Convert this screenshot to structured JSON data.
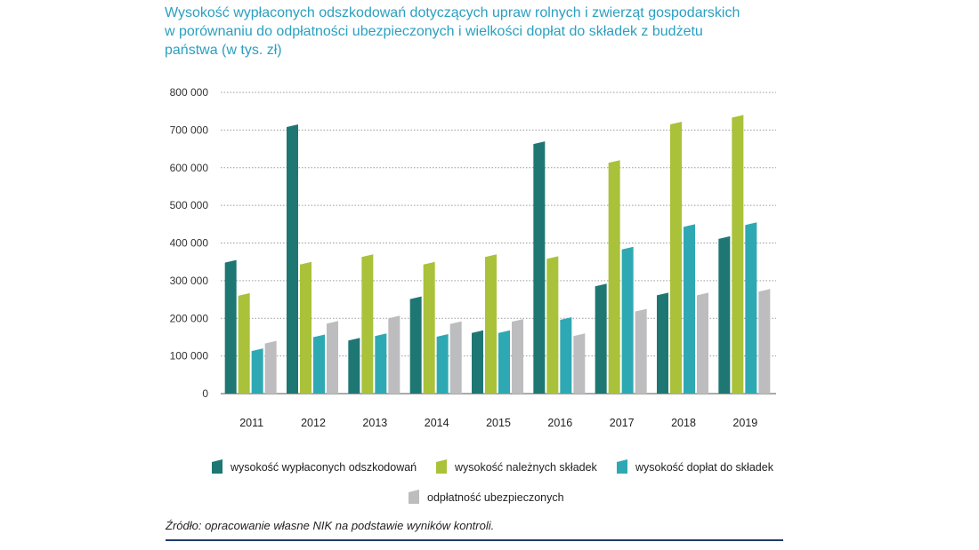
{
  "title": {
    "line1": "Wysokość wypłaconych odszkodowań dotyczących upraw rolnych i zwierząt gospodarskich",
    "line2": "w porównaniu do odpłatności ubezpieczonych i wielkości dopłat do składek z budżetu",
    "line3": "państwa (w tys. zł)"
  },
  "source": "Źródło: opracowanie własne NIK na podstawie wyników kontroli.",
  "chart_data": {
    "type": "bar",
    "title": "Wysokość wypłaconych odszkodowań dotyczących upraw rolnych i zwierząt gospodarskich w porównaniu do odpłatności ubezpieczonych i wielkości dopłat do składek z budżetu państwa (w tys. zł)",
    "categories": [
      "2011",
      "2012",
      "2013",
      "2014",
      "2015",
      "2016",
      "2017",
      "2018",
      "2019"
    ],
    "ylim": [
      0,
      800000
    ],
    "yticks": [
      0,
      100000,
      200000,
      300000,
      400000,
      500000,
      600000,
      700000,
      800000
    ],
    "ytick_labels": [
      "0",
      "100 000",
      "200 000",
      "300 000",
      "400 000",
      "500 000",
      "600 000",
      "700 000",
      "800 000"
    ],
    "grid": true,
    "legend_position": "bottom",
    "series": [
      {
        "name": "wysokość wypłaconych odszkodowań",
        "color": "#1e7773",
        "values": [
          355000,
          715000,
          148000,
          258000,
          168000,
          670000,
          292000,
          268000,
          418000
        ]
      },
      {
        "name": "wysokość należnych składek",
        "color": "#a9c23a",
        "values": [
          267000,
          350000,
          370000,
          350000,
          370000,
          365000,
          620000,
          722000,
          740000
        ]
      },
      {
        "name": "wysokość dopłat do składek",
        "color": "#2ea9b3",
        "values": [
          120000,
          157000,
          160000,
          158000,
          168000,
          203000,
          390000,
          450000,
          455000
        ]
      },
      {
        "name": "odpłatność ubezpieczonych",
        "color": "#bdbdbf",
        "values": [
          140000,
          193000,
          207000,
          192000,
          198000,
          160000,
          225000,
          268000,
          278000
        ]
      }
    ]
  }
}
